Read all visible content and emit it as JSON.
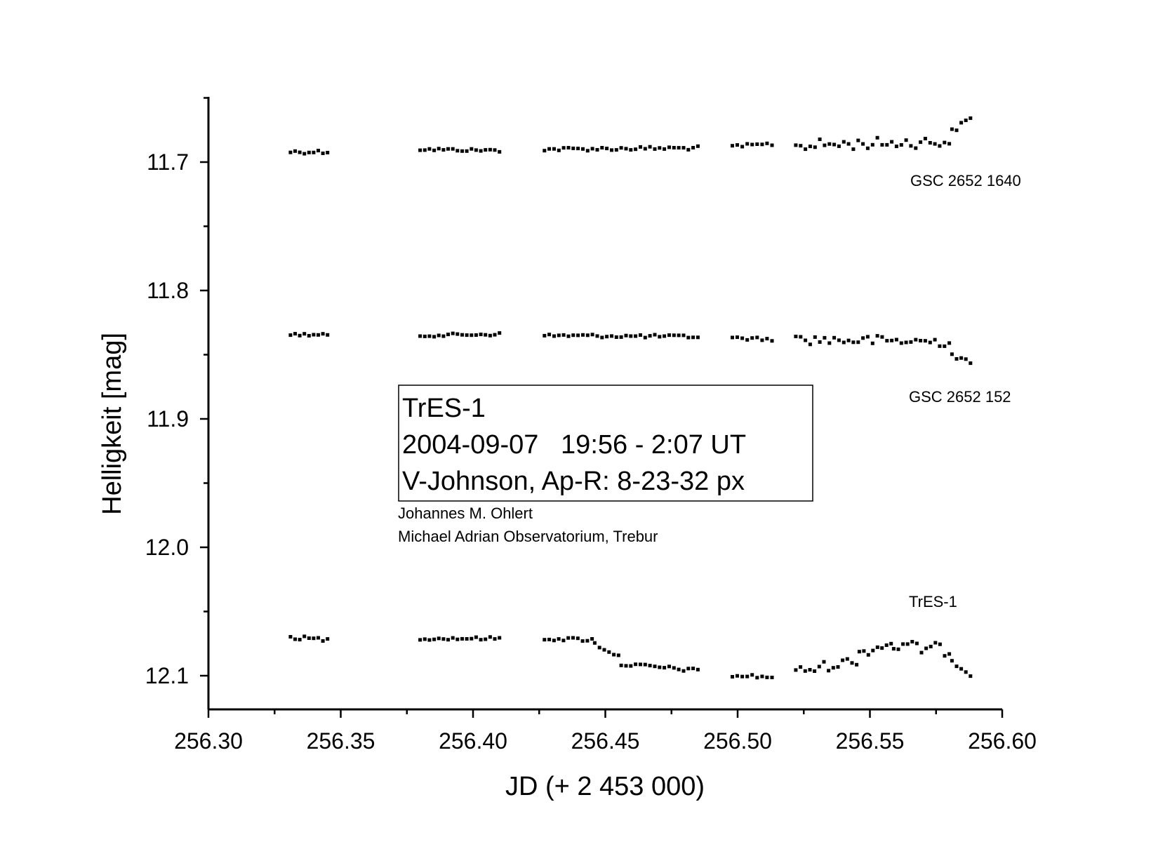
{
  "chart_data": {
    "type": "scatter",
    "xlabel": "JD (+ 2 453 000)",
    "ylabel": "Helligkeit [mag]",
    "xlim": [
      256.3,
      256.6
    ],
    "ylim": [
      11.65,
      12.125
    ],
    "y_inverted": true,
    "xticks": [
      "256.30",
      "256.35",
      "256.40",
      "256.45",
      "256.50",
      "256.55",
      "256.60"
    ],
    "yticks": [
      "11.7",
      "11.8",
      "11.9",
      "12.0",
      "12.1"
    ],
    "series": [
      {
        "name": "GSC 2652 1640",
        "segments": [
          {
            "x_start": 256.331,
            "x_end": 256.345,
            "step": 0.0018,
            "y_start": 11.692,
            "y_end": 11.692,
            "scatter": 0.0015
          },
          {
            "x_start": 256.38,
            "x_end": 256.41,
            "step": 0.0018,
            "y_start": 11.69,
            "y_end": 11.691,
            "scatter": 0.0012
          },
          {
            "x_start": 256.427,
            "x_end": 256.485,
            "step": 0.0018,
            "y_start": 11.69,
            "y_end": 11.689,
            "scatter": 0.0015
          },
          {
            "x_start": 256.498,
            "x_end": 256.513,
            "step": 0.0018,
            "y_start": 11.688,
            "y_end": 11.686,
            "scatter": 0.0015
          },
          {
            "x_start": 256.522,
            "x_end": 256.58,
            "step": 0.0018,
            "y_start": 11.687,
            "y_end": 11.684,
            "scatter": 0.0045
          },
          {
            "x_start": 256.581,
            "x_end": 256.588,
            "step": 0.0018,
            "y_start": 11.676,
            "y_end": 11.666,
            "scatter": 0.002
          }
        ]
      },
      {
        "name": "GSC 2652 152",
        "segments": [
          {
            "x_start": 256.331,
            "x_end": 256.345,
            "step": 0.0018,
            "y_start": 11.834,
            "y_end": 11.835,
            "scatter": 0.0012
          },
          {
            "x_start": 256.38,
            "x_end": 256.41,
            "step": 0.0018,
            "y_start": 11.835,
            "y_end": 11.834,
            "scatter": 0.0012
          },
          {
            "x_start": 256.427,
            "x_end": 256.485,
            "step": 0.0018,
            "y_start": 11.835,
            "y_end": 11.836,
            "scatter": 0.0013
          },
          {
            "x_start": 256.498,
            "x_end": 256.513,
            "step": 0.0018,
            "y_start": 11.837,
            "y_end": 11.838,
            "scatter": 0.0013
          },
          {
            "x_start": 256.522,
            "x_end": 256.58,
            "step": 0.0018,
            "y_start": 11.838,
            "y_end": 11.84,
            "scatter": 0.004
          },
          {
            "x_start": 256.581,
            "x_end": 256.588,
            "step": 0.0018,
            "y_start": 11.85,
            "y_end": 11.857,
            "scatter": 0.002
          }
        ]
      },
      {
        "name": "TrES-1",
        "segments": [
          {
            "x_start": 256.331,
            "x_end": 256.345,
            "step": 0.0018,
            "y_start": 12.07,
            "y_end": 12.072,
            "scatter": 0.0015
          },
          {
            "x_start": 256.38,
            "x_end": 256.41,
            "step": 0.0018,
            "y_start": 12.071,
            "y_end": 12.071,
            "scatter": 0.0012
          },
          {
            "x_start": 256.427,
            "x_end": 256.445,
            "step": 0.0018,
            "y_start": 12.071,
            "y_end": 12.072,
            "scatter": 0.0015
          },
          {
            "x_start": 256.446,
            "x_end": 256.455,
            "step": 0.0018,
            "y_start": 12.075,
            "y_end": 12.085,
            "scatter": 0.0015
          },
          {
            "x_start": 256.456,
            "x_end": 256.485,
            "step": 0.0018,
            "y_start": 12.091,
            "y_end": 12.096,
            "scatter": 0.0015
          },
          {
            "x_start": 256.498,
            "x_end": 256.513,
            "step": 0.0018,
            "y_start": 12.1,
            "y_end": 12.101,
            "scatter": 0.0015
          },
          {
            "x_start": 256.522,
            "x_end": 256.545,
            "step": 0.0018,
            "y_start": 12.097,
            "y_end": 12.088,
            "scatter": 0.004
          },
          {
            "x_start": 256.546,
            "x_end": 256.558,
            "step": 0.0018,
            "y_start": 12.082,
            "y_end": 12.075,
            "scatter": 0.004
          },
          {
            "x_start": 256.559,
            "x_end": 256.58,
            "step": 0.0018,
            "y_start": 12.077,
            "y_end": 12.08,
            "scatter": 0.005
          },
          {
            "x_start": 256.581,
            "x_end": 256.588,
            "step": 0.0018,
            "y_start": 12.088,
            "y_end": 12.099,
            "scatter": 0.002
          }
        ]
      }
    ],
    "annotation_box": {
      "lines": [
        "TrES-1",
        "2004-09-07   19:56 - 2:07 UT",
        "V-Johnson, Ap-R: 8-23-32 px"
      ]
    },
    "credits": [
      "Johannes M. Ohlert",
      "Michael Adrian Observatorium, Trebur"
    ],
    "grid": false,
    "legend": "labels placed right of each series"
  }
}
